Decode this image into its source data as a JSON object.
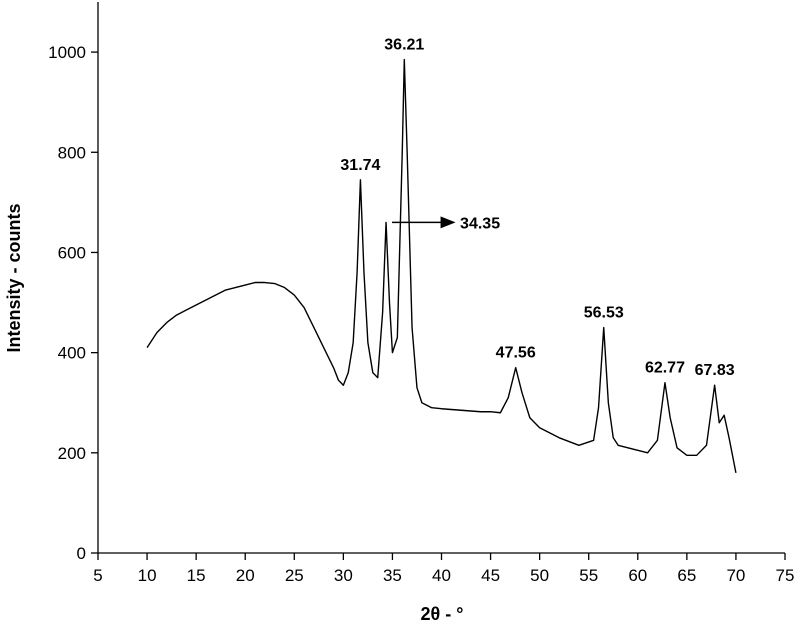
{
  "chart_data": {
    "type": "line",
    "x_label": "2θ - °",
    "y_label": "Intensity - counts",
    "x": [
      10,
      11,
      12,
      13,
      14,
      15,
      16,
      17,
      18,
      19,
      20,
      21,
      22,
      23,
      24,
      25,
      26,
      27,
      28,
      29,
      29.5,
      30,
      30.5,
      31,
      31.4,
      31.74,
      32.1,
      32.5,
      33,
      33.5,
      34,
      34.35,
      34.7,
      35,
      35.5,
      36,
      36.21,
      36.5,
      37,
      37.5,
      38,
      39,
      40,
      42,
      44,
      45,
      46,
      46.8,
      47.56,
      48.2,
      49,
      50,
      52,
      54,
      55.5,
      56,
      56.53,
      57,
      57.5,
      58,
      60,
      61,
      62,
      62.77,
      63.3,
      64,
      65,
      66,
      67,
      67.83,
      68.3,
      68.8,
      69.3,
      70
    ],
    "values": [
      410,
      440,
      460,
      475,
      485,
      495,
      505,
      515,
      525,
      530,
      535,
      540,
      540,
      538,
      530,
      515,
      490,
      450,
      410,
      370,
      345,
      335,
      360,
      420,
      560,
      745,
      560,
      420,
      360,
      350,
      480,
      660,
      500,
      400,
      430,
      800,
      985,
      800,
      450,
      330,
      300,
      290,
      288,
      285,
      282,
      282,
      280,
      310,
      370,
      320,
      270,
      250,
      230,
      215,
      225,
      290,
      450,
      300,
      230,
      215,
      205,
      200,
      225,
      340,
      270,
      210,
      195,
      195,
      215,
      335,
      260,
      275,
      230,
      160
    ],
    "color": "#000000",
    "xlim": [
      5,
      75
    ],
    "xticks": [
      5,
      10,
      15,
      20,
      25,
      30,
      35,
      40,
      45,
      50,
      55,
      60,
      65,
      70,
      75
    ],
    "ylim": [
      0,
      1100
    ],
    "yticks": [
      0,
      200,
      400,
      600,
      800,
      1000
    ],
    "annotations": [
      {
        "x": 31.74,
        "label": "31.74"
      },
      {
        "x": 34.35,
        "label": "34.35",
        "arrow": "right"
      },
      {
        "x": 36.21,
        "label": "36.21"
      },
      {
        "x": 47.56,
        "label": "47.56"
      },
      {
        "x": 56.53,
        "label": "56.53"
      },
      {
        "x": 62.77,
        "label": "62.77"
      },
      {
        "x": 67.83,
        "label": "67.83"
      }
    ]
  }
}
